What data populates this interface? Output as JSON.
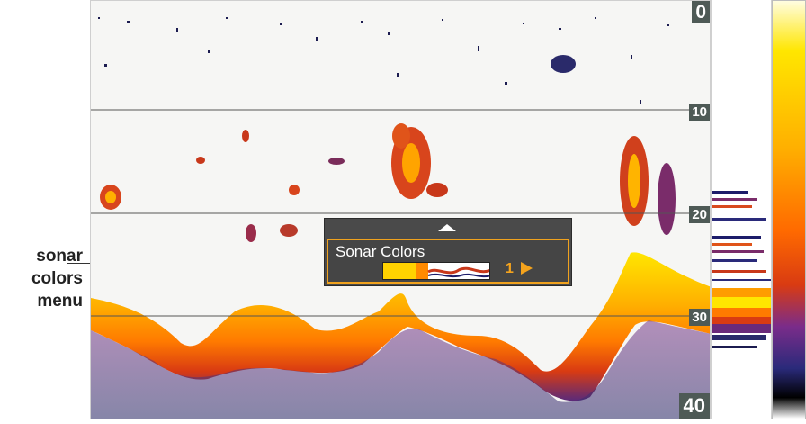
{
  "callout": {
    "line1": "sonar",
    "line2": "colors",
    "line3": "menu"
  },
  "depth_scale": {
    "d0": "0",
    "d10": "10",
    "d20": "20",
    "d30": "30",
    "d40": "40"
  },
  "menu": {
    "title": "Sonar Colors",
    "value": "1"
  },
  "colors": {
    "menu_highlight": "#f0a21e",
    "menu_bg": "#4a4a4a",
    "label_bg": "#4e5a56"
  },
  "icons": {
    "scroll_up": "triangle-up-icon",
    "next": "triangle-right-icon"
  }
}
